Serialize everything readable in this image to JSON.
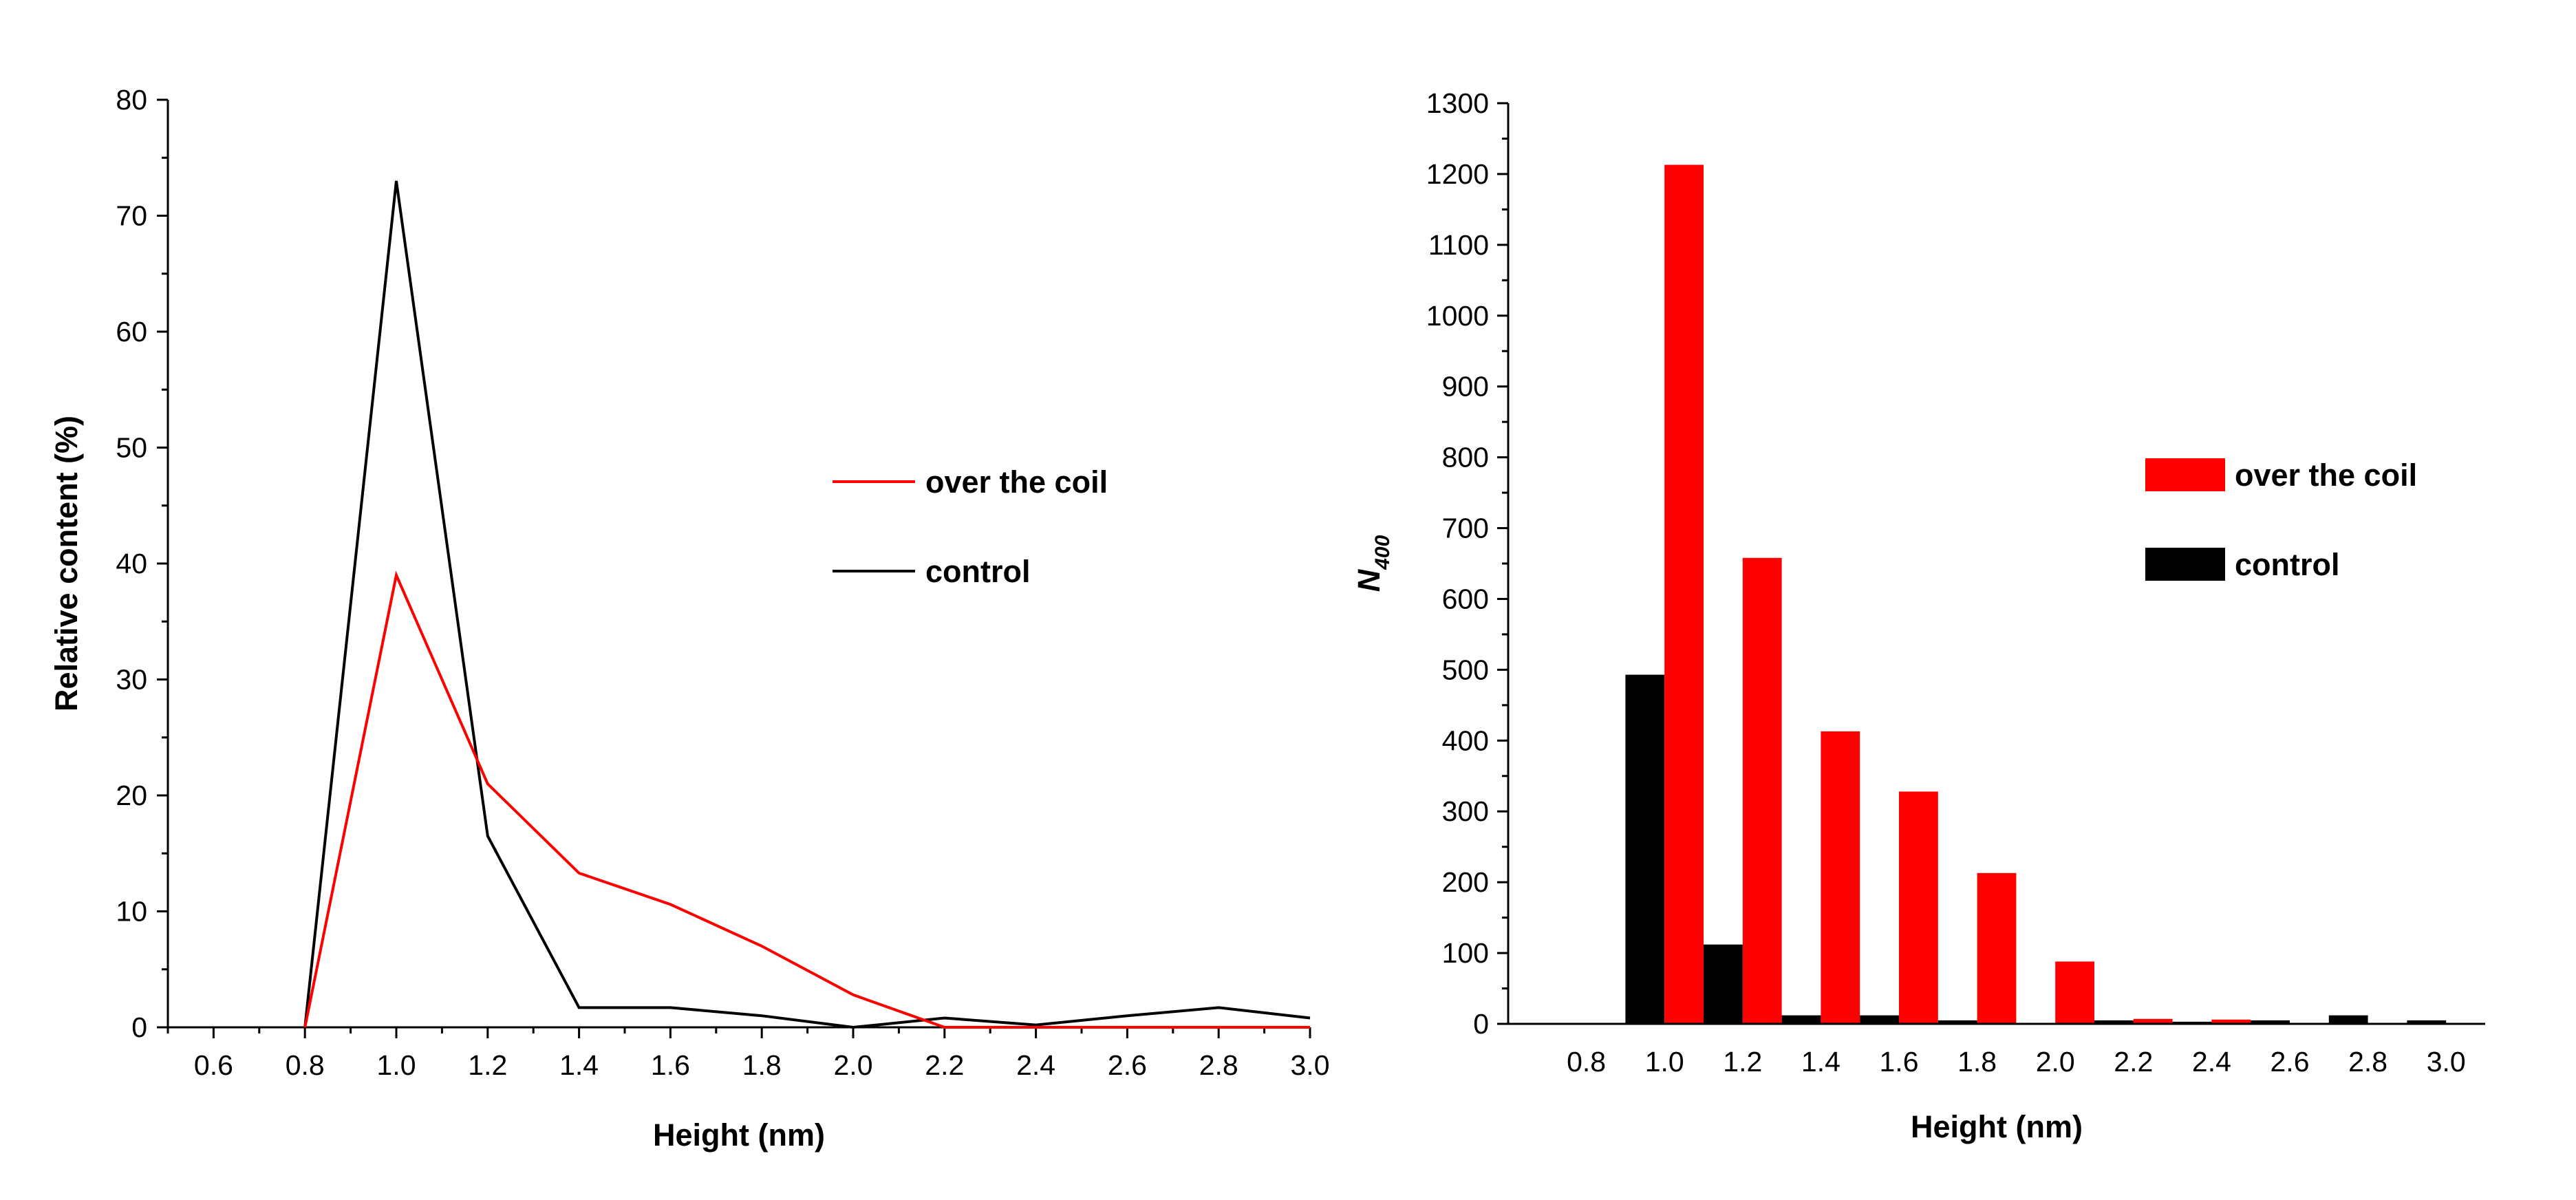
{
  "chart_data": [
    {
      "type": "line",
      "title": "",
      "xlabel": "Height (nm)",
      "ylabel": "Relative content (%)",
      "xlim": [
        0.5,
        3.0
      ],
      "ylim": [
        0,
        80
      ],
      "x_ticks": [
        "0.6",
        "0.8",
        "1.0",
        "1.2",
        "1.4",
        "1.6",
        "1.8",
        "2.0",
        "2.2",
        "2.4",
        "2.6",
        "2.8",
        "3.0"
      ],
      "y_ticks": [
        "0",
        "10",
        "20",
        "30",
        "40",
        "50",
        "60",
        "70",
        "80"
      ],
      "legend_position": "right",
      "series": [
        {
          "name": "over the coil",
          "color": "#ff0000",
          "x": [
            0.8,
            1.0,
            1.2,
            1.4,
            1.6,
            1.8,
            2.0,
            2.2,
            2.4,
            2.6,
            2.8,
            3.0
          ],
          "y": [
            0,
            39,
            21,
            13.3,
            10.6,
            7,
            2.8,
            0,
            0,
            0,
            0,
            0
          ]
        },
        {
          "name": "control",
          "color": "#000000",
          "x": [
            0.8,
            1.0,
            1.2,
            1.4,
            1.6,
            1.8,
            2.0,
            2.2,
            2.4,
            2.6,
            2.8,
            3.0
          ],
          "y": [
            0,
            73,
            16.5,
            1.7,
            1.7,
            1.0,
            0,
            0.8,
            0.2,
            1.0,
            1.7,
            0.8
          ]
        }
      ]
    },
    {
      "type": "bar",
      "title": "",
      "xlabel": "Height (nm)",
      "ylabel": "N",
      "ylabel_subscript": "400",
      "xlim": [
        0.6,
        3.1
      ],
      "ylim": [
        0,
        1300
      ],
      "x_ticks": [
        "0.8",
        "1.0",
        "1.2",
        "1.4",
        "1.6",
        "1.8",
        "2.0",
        "2.2",
        "2.4",
        "2.6",
        "2.8",
        "3.0"
      ],
      "y_ticks": [
        "0",
        "100",
        "200",
        "300",
        "400",
        "500",
        "600",
        "700",
        "800",
        "900",
        "1000",
        "1100",
        "1200",
        "1300"
      ],
      "legend_position": "right",
      "bar_width": 0.1,
      "series": [
        {
          "name": "over the coil",
          "color": "#ff0000",
          "x": [
            1.0,
            1.2,
            1.4,
            1.6,
            1.8,
            2.0,
            2.2,
            2.4,
            2.6,
            2.8,
            3.0
          ],
          "values": [
            1213,
            658,
            413,
            328,
            213,
            88,
            7,
            6,
            0,
            0,
            0
          ]
        },
        {
          "name": "control",
          "color": "#000000",
          "x": [
            1.0,
            1.2,
            1.4,
            1.6,
            1.8,
            2.0,
            2.2,
            2.4,
            2.6,
            2.8,
            3.0
          ],
          "values": [
            493,
            112,
            12,
            12,
            5,
            0,
            5,
            3,
            5,
            12,
            5
          ]
        }
      ]
    }
  ]
}
